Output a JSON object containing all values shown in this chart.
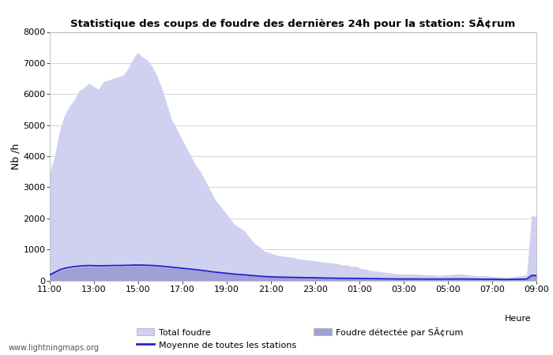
{
  "title": "Statistique des coups de foudre des dernières 24h pour la station: SÃ¢rum",
  "ylabel": "Nb /h",
  "xlabel_right": "Heure",
  "watermark": "www.lightningmaps.org",
  "legend_total": "Total foudre",
  "legend_moyenne": "Moyenne de toutes les stations",
  "legend_detected": "Foudre détectée par SÃ¢rum",
  "xtick_labels": [
    "11:00",
    "13:00",
    "15:00",
    "17:00",
    "19:00",
    "21:00",
    "23:00",
    "01:00",
    "03:00",
    "05:00",
    "07:00",
    "09:00"
  ],
  "ytick_values": [
    0,
    1000,
    2000,
    3000,
    4000,
    5000,
    6000,
    7000,
    8000
  ],
  "ylim": [
    0,
    8000
  ],
  "bg_color": "#ffffff",
  "plot_bg_color": "#ffffff",
  "fill_total_color": "#d0d0f0",
  "fill_detected_color": "#a0a0d8",
  "line_color": "#2222cc",
  "grid_color": "#cccccc",
  "total_foudre": [
    3500,
    4000,
    4800,
    5300,
    5600,
    5800,
    6100,
    6200,
    6350,
    6250,
    6150,
    6400,
    6450,
    6500,
    6550,
    6600,
    6800,
    7100,
    7350,
    7200,
    7100,
    6900,
    6600,
    6200,
    5700,
    5200,
    4900,
    4600,
    4300,
    4000,
    3700,
    3500,
    3200,
    2900,
    2600,
    2400,
    2200,
    2000,
    1800,
    1700,
    1600,
    1400,
    1200,
    1100,
    950,
    900,
    850,
    800,
    780,
    760,
    740,
    700,
    680,
    660,
    640,
    620,
    600,
    580,
    560,
    550,
    500,
    500,
    450,
    450,
    380,
    360,
    320,
    300,
    280,
    260,
    240,
    220,
    200,
    200,
    200,
    200,
    200,
    180,
    180,
    180,
    160,
    180,
    180,
    200,
    200,
    200,
    180,
    160,
    150,
    150,
    140,
    130,
    120,
    110,
    100,
    120,
    140,
    150,
    180,
    2100,
    2050
  ],
  "foudre_detected": [
    250,
    280,
    320,
    360,
    390,
    410,
    430,
    445,
    450,
    445,
    440,
    445,
    448,
    450,
    452,
    455,
    460,
    470,
    480,
    475,
    468,
    460,
    448,
    435,
    420,
    405,
    390,
    375,
    360,
    345,
    330,
    315,
    295,
    275,
    255,
    240,
    225,
    210,
    195,
    185,
    175,
    160,
    145,
    135,
    120,
    115,
    110,
    105,
    102,
    100,
    98,
    95,
    93,
    91,
    89,
    87,
    85,
    83,
    81,
    80,
    78,
    78,
    76,
    76,
    72,
    70,
    68,
    66,
    64,
    62,
    60,
    58,
    56,
    56,
    56,
    56,
    56,
    54,
    54,
    54,
    52,
    54,
    54,
    56,
    56,
    56,
    54,
    52,
    50,
    50,
    48,
    46,
    44,
    42,
    40,
    44,
    48,
    50,
    54,
    200,
    195
  ],
  "moyenne": [
    180,
    260,
    340,
    390,
    420,
    445,
    460,
    475,
    480,
    477,
    472,
    475,
    477,
    480,
    482,
    484,
    488,
    493,
    498,
    494,
    489,
    482,
    472,
    460,
    445,
    428,
    412,
    396,
    380,
    364,
    347,
    330,
    310,
    288,
    268,
    252,
    236,
    220,
    204,
    193,
    182,
    168,
    153,
    142,
    128,
    120,
    114,
    108,
    105,
    102,
    99,
    96,
    93,
    90,
    87,
    84,
    81,
    78,
    75,
    73,
    70,
    70,
    68,
    68,
    64,
    62,
    60,
    58,
    56,
    54,
    52,
    50,
    48,
    48,
    48,
    48,
    48,
    46,
    46,
    46,
    44,
    46,
    46,
    48,
    48,
    48,
    46,
    44,
    42,
    42,
    40,
    38,
    36,
    34,
    32,
    36,
    40,
    42,
    46,
    160,
    155
  ]
}
